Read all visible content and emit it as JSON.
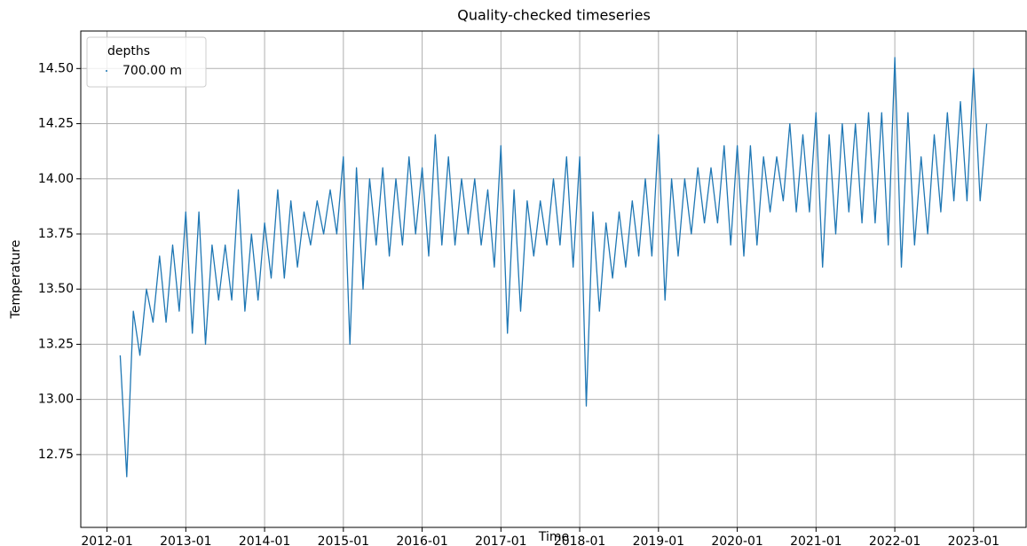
{
  "chart_data": {
    "type": "line",
    "title": "Quality-checked timeseries",
    "xlabel": "Time",
    "ylabel": "Temperature",
    "x": [
      "2012-03",
      "2012-04",
      "2012-05",
      "2012-06",
      "2012-07",
      "2012-08",
      "2012-09",
      "2012-10",
      "2012-11",
      "2012-12",
      "2013-01",
      "2013-02",
      "2013-03",
      "2013-04",
      "2013-05",
      "2013-06",
      "2013-07",
      "2013-08",
      "2013-09",
      "2013-10",
      "2013-11",
      "2013-12",
      "2014-01",
      "2014-02",
      "2014-03",
      "2014-04",
      "2014-05",
      "2014-06",
      "2014-07",
      "2014-08",
      "2014-09",
      "2014-10",
      "2014-11",
      "2014-12",
      "2015-01",
      "2015-02",
      "2015-03",
      "2015-04",
      "2015-05",
      "2015-06",
      "2015-07",
      "2015-08",
      "2015-09",
      "2015-10",
      "2015-11",
      "2015-12",
      "2016-01",
      "2016-02",
      "2016-03",
      "2016-04",
      "2016-05",
      "2016-06",
      "2016-07",
      "2016-08",
      "2016-09",
      "2016-10",
      "2016-11",
      "2016-12",
      "2017-01",
      "2017-02",
      "2017-03",
      "2017-04",
      "2017-05",
      "2017-06",
      "2017-07",
      "2017-08",
      "2017-09",
      "2017-10",
      "2017-11",
      "2017-12",
      "2018-01",
      "2018-02",
      "2018-03",
      "2018-04",
      "2018-05",
      "2018-06",
      "2018-07",
      "2018-08",
      "2018-09",
      "2018-10",
      "2018-11",
      "2018-12",
      "2019-01",
      "2019-02",
      "2019-03",
      "2019-04",
      "2019-05",
      "2019-06",
      "2019-07",
      "2019-08",
      "2019-09",
      "2019-10",
      "2019-11",
      "2019-12",
      "2020-01",
      "2020-02",
      "2020-03",
      "2020-04",
      "2020-05",
      "2020-06",
      "2020-07",
      "2020-08",
      "2020-09",
      "2020-10",
      "2020-11",
      "2020-12",
      "2021-01",
      "2021-02",
      "2021-03",
      "2021-04",
      "2021-05",
      "2021-06",
      "2021-07",
      "2021-08",
      "2021-09",
      "2021-10",
      "2021-11",
      "2021-12",
      "2022-01",
      "2022-02",
      "2022-03",
      "2022-04",
      "2022-05",
      "2022-06",
      "2022-07",
      "2022-08",
      "2022-09",
      "2022-10",
      "2022-11",
      "2022-12",
      "2023-01",
      "2023-02",
      "2023-03"
    ],
    "series": [
      {
        "name": "700.00 m",
        "color": "#1f77b4",
        "values": [
          13.2,
          12.65,
          13.4,
          13.2,
          13.5,
          13.35,
          13.65,
          13.35,
          13.7,
          13.4,
          13.85,
          13.3,
          13.85,
          13.25,
          13.7,
          13.45,
          13.7,
          13.45,
          13.95,
          13.4,
          13.75,
          13.45,
          13.8,
          13.55,
          13.95,
          13.55,
          13.9,
          13.6,
          13.85,
          13.7,
          13.9,
          13.75,
          13.95,
          13.75,
          14.1,
          13.25,
          14.05,
          13.5,
          14.0,
          13.7,
          14.05,
          13.65,
          14.0,
          13.7,
          14.1,
          13.75,
          14.05,
          13.65,
          14.2,
          13.7,
          14.1,
          13.7,
          14.0,
          13.75,
          14.0,
          13.7,
          13.95,
          13.6,
          14.15,
          13.3,
          13.95,
          13.4,
          13.9,
          13.65,
          13.9,
          13.7,
          14.0,
          13.7,
          14.1,
          13.6,
          14.1,
          12.97,
          13.85,
          13.4,
          13.8,
          13.55,
          13.85,
          13.6,
          13.9,
          13.65,
          14.0,
          13.65,
          14.2,
          13.45,
          14.0,
          13.65,
          14.0,
          13.75,
          14.05,
          13.8,
          14.05,
          13.8,
          14.15,
          13.7,
          14.15,
          13.65,
          14.15,
          13.7,
          14.1,
          13.85,
          14.1,
          13.9,
          14.25,
          13.85,
          14.2,
          13.85,
          14.3,
          13.6,
          14.2,
          13.75,
          14.25,
          13.85,
          14.25,
          13.8,
          14.3,
          13.8,
          14.3,
          13.7,
          14.55,
          13.6,
          14.3,
          13.7,
          14.1,
          13.75,
          14.2,
          13.85,
          14.3,
          13.9,
          14.35,
          13.9,
          14.5,
          13.9,
          14.25
        ]
      }
    ],
    "xlim": [
      "2011-09",
      "2023-09"
    ],
    "xticks": [
      "2012-01",
      "2013-01",
      "2014-01",
      "2015-01",
      "2016-01",
      "2017-01",
      "2018-01",
      "2019-01",
      "2020-01",
      "2021-01",
      "2022-01",
      "2023-01"
    ],
    "ylim": [
      12.42,
      14.67
    ],
    "yticks": [
      12.75,
      {
        "value": 13,
        "label": "13.00"
      },
      13.25,
      {
        "value": 13.5,
        "label": "13.50"
      },
      13.75,
      {
        "value": 14,
        "label": "14.00"
      },
      14.25,
      {
        "value": 14.5,
        "label": "14.50"
      }
    ],
    "grid": true,
    "legend": {
      "title": "depths",
      "corner": "upper left"
    }
  }
}
